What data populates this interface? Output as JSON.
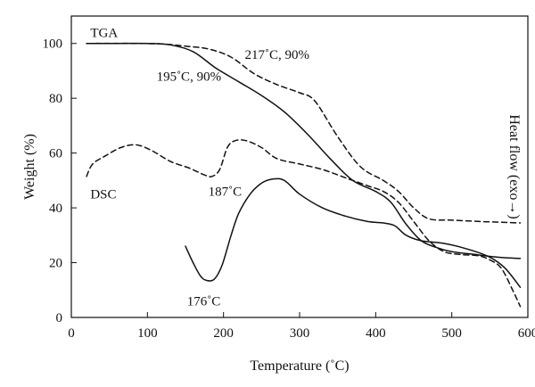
{
  "chart_data": {
    "type": "line",
    "xlabel": "Temperature (˚C)",
    "ylabel": "Weight (%)",
    "y2label": "Heat flow (exo→)",
    "xlim": [
      0,
      600
    ],
    "ylim": [
      0,
      110
    ],
    "xticks": [
      0,
      100,
      200,
      300,
      400,
      500,
      600
    ],
    "yticks": [
      0,
      20,
      40,
      60,
      80,
      100
    ],
    "grid": false,
    "legend": "none",
    "series": [
      {
        "group": "TGA",
        "style": "solid",
        "points": [
          [
            20,
            100
          ],
          [
            60,
            100
          ],
          [
            100,
            100
          ],
          [
            130,
            99.5
          ],
          [
            160,
            97
          ],
          [
            190,
            91
          ],
          [
            220,
            86
          ],
          [
            250,
            81
          ],
          [
            280,
            75
          ],
          [
            310,
            67
          ],
          [
            340,
            58
          ],
          [
            370,
            50
          ],
          [
            400,
            46
          ],
          [
            420,
            42
          ],
          [
            440,
            34
          ],
          [
            460,
            28
          ],
          [
            480,
            25.5
          ],
          [
            500,
            24
          ],
          [
            530,
            23
          ],
          [
            560,
            22
          ],
          [
            590,
            21.5
          ]
        ]
      },
      {
        "group": "TGA",
        "style": "dashed",
        "points": [
          [
            20,
            100
          ],
          [
            80,
            100
          ],
          [
            120,
            99.8
          ],
          [
            150,
            99
          ],
          [
            180,
            98
          ],
          [
            210,
            95
          ],
          [
            240,
            89
          ],
          [
            270,
            85
          ],
          [
            300,
            82
          ],
          [
            320,
            79
          ],
          [
            350,
            66
          ],
          [
            380,
            55
          ],
          [
            410,
            50
          ],
          [
            430,
            46
          ],
          [
            450,
            40
          ],
          [
            470,
            36
          ],
          [
            500,
            35.5
          ],
          [
            540,
            35
          ],
          [
            570,
            34.7
          ],
          [
            590,
            34.5
          ]
        ]
      },
      {
        "group": "DSC",
        "style": "solid",
        "points": [
          [
            150,
            26
          ],
          [
            160,
            20
          ],
          [
            170,
            15
          ],
          [
            178,
            13.5
          ],
          [
            188,
            14
          ],
          [
            198,
            19
          ],
          [
            210,
            30
          ],
          [
            220,
            38
          ],
          [
            235,
            45
          ],
          [
            250,
            49
          ],
          [
            265,
            50.5
          ],
          [
            280,
            50
          ],
          [
            300,
            45
          ],
          [
            330,
            40
          ],
          [
            360,
            37
          ],
          [
            390,
            35
          ],
          [
            410,
            34.5
          ],
          [
            425,
            33.5
          ],
          [
            440,
            30
          ],
          [
            460,
            28
          ],
          [
            490,
            27
          ],
          [
            520,
            25
          ],
          [
            550,
            22
          ],
          [
            570,
            18
          ],
          [
            590,
            11
          ]
        ]
      },
      {
        "group": "DSC",
        "style": "dashed",
        "points": [
          [
            20,
            51.5
          ],
          [
            28,
            56
          ],
          [
            45,
            59
          ],
          [
            65,
            62
          ],
          [
            85,
            63
          ],
          [
            105,
            61
          ],
          [
            130,
            57
          ],
          [
            155,
            54.5
          ],
          [
            175,
            52
          ],
          [
            185,
            51.5
          ],
          [
            195,
            54
          ],
          [
            205,
            62
          ],
          [
            215,
            64.5
          ],
          [
            230,
            64.5
          ],
          [
            250,
            62
          ],
          [
            270,
            58
          ],
          [
            300,
            56
          ],
          [
            330,
            54
          ],
          [
            360,
            51
          ],
          [
            390,
            48
          ],
          [
            410,
            46
          ],
          [
            430,
            42
          ],
          [
            450,
            35
          ],
          [
            470,
            28
          ],
          [
            490,
            24
          ],
          [
            510,
            23
          ],
          [
            535,
            22.5
          ],
          [
            550,
            21
          ],
          [
            565,
            18
          ],
          [
            580,
            10
          ],
          [
            590,
            4
          ]
        ]
      }
    ],
    "annotations": [
      {
        "text": "TGA",
        "x": 25,
        "y": 104
      },
      {
        "text": "195˚C, 90%",
        "x": 112,
        "y": 88
      },
      {
        "text": "217˚C, 90%",
        "x": 228,
        "y": 96
      },
      {
        "text": "DSC",
        "x": 25,
        "y": 45
      },
      {
        "text": "187˚C",
        "x": 180,
        "y": 46
      },
      {
        "text": "176˚C",
        "x": 152,
        "y": 6
      }
    ]
  }
}
